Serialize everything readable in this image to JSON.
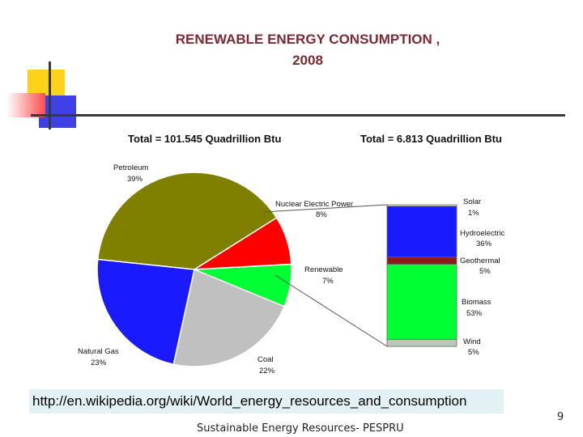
{
  "slide": {
    "title_line1": "RENEWABLE ENERGY CONSUMPTION ,",
    "title_line2": "2008",
    "source_url": "http://en.wikipedia.org/wiki/World_energy_resources_and_consumption",
    "footer": "Sustainable Energy Resources- PESPRU",
    "page_number": "9"
  },
  "chart_data": [
    {
      "type": "pie",
      "title": "Total = 101.545 Quadrillion Btu",
      "slices": [
        {
          "label": "Petroleum",
          "value": 39,
          "value_label": "39%",
          "color": "#808000"
        },
        {
          "label": "Nuclear Electric Power",
          "value": 8,
          "value_label": "8%",
          "color": "#ff0000"
        },
        {
          "label": "Renewable",
          "value": 7,
          "value_label": "7%",
          "color": "#00ff33"
        },
        {
          "label": "Coal",
          "value": 22,
          "value_label": "22%",
          "color": "#c0c0c0"
        },
        {
          "label": "Natural Gas",
          "value": 23,
          "value_label": "23%",
          "color": "#1a1aff"
        }
      ]
    },
    {
      "type": "bar",
      "stacked": true,
      "title": "Total = 6.813 Quadrillion Btu",
      "segments": [
        {
          "label": "Solar",
          "value": 1,
          "value_label": "1%",
          "color": "#ffffff"
        },
        {
          "label": "Hydroelectric",
          "value": 36,
          "value_label": "36%",
          "color": "#1a1aff"
        },
        {
          "label": "Geothermal",
          "value": 5,
          "value_label": "5%",
          "color": "#8b1a1a"
        },
        {
          "label": "Biomass",
          "value": 53,
          "value_label": "53%",
          "color": "#00ff33"
        },
        {
          "label": "Wind",
          "value": 5,
          "value_label": "5%",
          "color": "#b8c8b8"
        }
      ]
    }
  ]
}
